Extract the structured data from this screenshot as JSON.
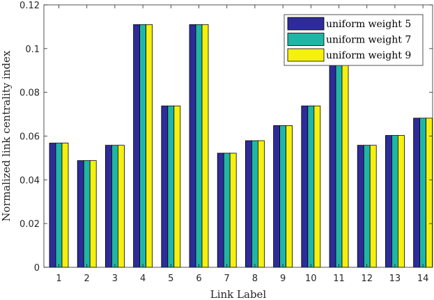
{
  "chart_data": {
    "type": "bar",
    "title": "",
    "xlabel": "Link Label",
    "ylabel": "Normalized link centrality index",
    "ylim": [
      0,
      0.12
    ],
    "yticks": [
      "0",
      "0.02",
      "0.04",
      "0.06",
      "0.08",
      "0.1",
      "0.12"
    ],
    "categories": [
      "1",
      "2",
      "3",
      "4",
      "5",
      "6",
      "7",
      "8",
      "9",
      "10",
      "11",
      "12",
      "13",
      "14"
    ],
    "grid": false,
    "legend_position": "top-right",
    "series": [
      {
        "name": "uniform weight 5",
        "color": "#2e2c9a",
        "values": [
          0.0568,
          0.0488,
          0.0558,
          0.111,
          0.0738,
          0.111,
          0.0522,
          0.0579,
          0.0648,
          0.0738,
          0.094,
          0.0558,
          0.0603,
          0.0682
        ]
      },
      {
        "name": "uniform weight 7",
        "color": "#21b5a5",
        "values": [
          0.0568,
          0.0488,
          0.0558,
          0.111,
          0.0738,
          0.111,
          0.0522,
          0.0579,
          0.0648,
          0.0738,
          0.094,
          0.0558,
          0.0603,
          0.0682
        ]
      },
      {
        "name": "uniform weight 9",
        "color": "#f5f00f",
        "values": [
          0.0568,
          0.0488,
          0.0558,
          0.111,
          0.0738,
          0.111,
          0.0522,
          0.0579,
          0.0648,
          0.0738,
          0.094,
          0.0558,
          0.0603,
          0.0682
        ]
      }
    ]
  }
}
